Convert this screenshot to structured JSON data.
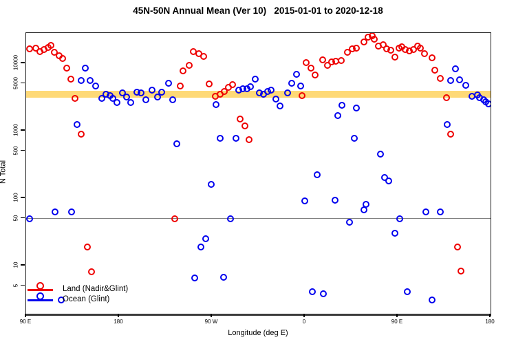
{
  "title": "45N-50N Annual Mean (Ver 10)   2015-01-01 to 2020-12-18",
  "chart_data": {
    "type": "scatter",
    "title": "45N-50N Annual Mean (Ver 10)   2015-01-01 to 2020-12-18",
    "xlabel": "Longitude (deg E)",
    "ylabel": "N Total",
    "grid": false,
    "legend_position": "bottom-left",
    "x_axis": {
      "range_deg": [
        90,
        540
      ],
      "ticks_deg": [
        90,
        180,
        270,
        360,
        450,
        540
      ],
      "tick_labels": [
        "90 E",
        "180",
        "90 W",
        "0",
        "90 E",
        "180"
      ]
    },
    "y_axis": {
      "scale": "log10",
      "log_range": [
        0.286,
        4.449
      ],
      "ticks": [
        10000,
        5000,
        1000,
        500,
        100,
        50,
        10,
        5
      ],
      "tick_labels": [
        "10000",
        "5000",
        "1000",
        "500",
        "100",
        "50",
        "10",
        "5"
      ]
    },
    "reference_line": {
      "value": 50,
      "color": "#7f7f7f"
    },
    "bands": [
      {
        "name": "yellow-band",
        "color": "#fed977",
        "n_range": [
          3100,
          3900
        ],
        "lon_ranges": [
          [
            90,
            540
          ]
        ]
      },
      {
        "name": "blue-band",
        "color": "#a9bedd",
        "n_range": [
          3100,
          3900
        ],
        "lon_ranges": [
          [
            141,
            236
          ],
          [
            268,
            334
          ],
          [
            500,
            540
          ]
        ]
      }
    ],
    "series": [
      {
        "name": "Land (Nadir&Glint)",
        "color": "#ee0000",
        "points": [
          [
            93,
            16400
          ],
          [
            99,
            16800
          ],
          [
            103,
            14900
          ],
          [
            107,
            16000
          ],
          [
            111,
            17200
          ],
          [
            114,
            18400
          ],
          [
            117,
            14600
          ],
          [
            122,
            13000
          ],
          [
            125,
            11800
          ],
          [
            129,
            8500
          ],
          [
            133,
            5800
          ],
          [
            137,
            3000
          ],
          [
            143,
            890
          ],
          [
            149,
            19
          ],
          [
            153,
            8.1
          ],
          [
            234,
            50
          ],
          [
            239,
            4600
          ],
          [
            242,
            7700
          ],
          [
            248,
            9300
          ],
          [
            252,
            14900
          ],
          [
            257,
            13900
          ],
          [
            262,
            12600
          ],
          [
            267,
            4900
          ],
          [
            273,
            3240
          ],
          [
            278,
            3480
          ],
          [
            282,
            3820
          ],
          [
            286,
            4400
          ],
          [
            290,
            4830
          ],
          [
            297,
            1490
          ],
          [
            302,
            1180
          ],
          [
            306,
            740
          ],
          [
            357,
            3300
          ],
          [
            361,
            10200
          ],
          [
            366,
            8500
          ],
          [
            370,
            6700
          ],
          [
            377,
            11200
          ],
          [
            382,
            9300
          ],
          [
            386,
            10500
          ],
          [
            390,
            10700
          ],
          [
            395,
            11000
          ],
          [
            401,
            14600
          ],
          [
            406,
            16400
          ],
          [
            410,
            16800
          ],
          [
            417,
            20700
          ],
          [
            421,
            24400
          ],
          [
            425,
            25600
          ],
          [
            427,
            22700
          ],
          [
            431,
            18000
          ],
          [
            436,
            18900
          ],
          [
            439,
            16400
          ],
          [
            443,
            15600
          ],
          [
            447,
            12400
          ],
          [
            451,
            16800
          ],
          [
            454,
            17600
          ],
          [
            457,
            16000
          ],
          [
            461,
            15300
          ],
          [
            465,
            16000
          ],
          [
            469,
            18000
          ],
          [
            472,
            16800
          ],
          [
            476,
            13900
          ],
          [
            483,
            12100
          ],
          [
            486,
            7900
          ],
          [
            491,
            6000
          ],
          [
            497,
            3090
          ],
          [
            501,
            890
          ],
          [
            508,
            19
          ],
          [
            511,
            8.3
          ]
        ]
      },
      {
        "name": "Ocean (Glint)",
        "color": "#0000ee",
        "points": [
          [
            93,
            50
          ],
          [
            118,
            62
          ],
          [
            124,
            3.1
          ],
          [
            134,
            63
          ],
          [
            139,
            1240
          ],
          [
            143,
            5550
          ],
          [
            147,
            8500
          ],
          [
            152,
            5550
          ],
          [
            157,
            4600
          ],
          [
            163,
            3020
          ],
          [
            167,
            3480
          ],
          [
            171,
            3310
          ],
          [
            174,
            3020
          ],
          [
            178,
            2620
          ],
          [
            183,
            3640
          ],
          [
            187,
            3160
          ],
          [
            191,
            2620
          ],
          [
            197,
            3730
          ],
          [
            201,
            3640
          ],
          [
            206,
            2880
          ],
          [
            212,
            4000
          ],
          [
            217,
            3160
          ],
          [
            221,
            3730
          ],
          [
            228,
            5060
          ],
          [
            232,
            2880
          ],
          [
            236,
            640
          ],
          [
            253,
            6.5
          ],
          [
            259,
            19
          ],
          [
            264,
            25
          ],
          [
            269,
            160
          ],
          [
            274,
            2440
          ],
          [
            278,
            770
          ],
          [
            281,
            6.7
          ],
          [
            288,
            50
          ],
          [
            293,
            770
          ],
          [
            296,
            4000
          ],
          [
            300,
            4190
          ],
          [
            304,
            4190
          ],
          [
            307,
            4500
          ],
          [
            312,
            5820
          ],
          [
            316,
            3640
          ],
          [
            320,
            3480
          ],
          [
            324,
            3820
          ],
          [
            327,
            4000
          ],
          [
            332,
            2950
          ],
          [
            336,
            2330
          ],
          [
            343,
            3640
          ],
          [
            347,
            5060
          ],
          [
            352,
            6870
          ],
          [
            356,
            4600
          ],
          [
            360,
            91
          ],
          [
            367,
            4.1
          ],
          [
            372,
            222
          ],
          [
            378,
            3.8
          ],
          [
            389,
            93
          ],
          [
            392,
            1680
          ],
          [
            396,
            2390
          ],
          [
            403,
            44
          ],
          [
            408,
            770
          ],
          [
            410,
            2170
          ],
          [
            417,
            67
          ],
          [
            419,
            81
          ],
          [
            433,
            450
          ],
          [
            437,
            202
          ],
          [
            441,
            180
          ],
          [
            447,
            30
          ],
          [
            452,
            50
          ],
          [
            459,
            4.1
          ],
          [
            477,
            63
          ],
          [
            483,
            3.1
          ],
          [
            491,
            63
          ],
          [
            498,
            1240
          ],
          [
            501,
            5500
          ],
          [
            506,
            8300
          ],
          [
            510,
            5700
          ],
          [
            516,
            4700
          ],
          [
            522,
            3240
          ],
          [
            527,
            3390
          ],
          [
            529,
            3090
          ],
          [
            533,
            2880
          ],
          [
            535,
            2690
          ],
          [
            538,
            2500
          ]
        ]
      }
    ],
    "legend": {
      "entries": [
        {
          "label": "Land (Nadir&Glint)",
          "color": "#ee0000"
        },
        {
          "label": "Ocean (Glint)",
          "color": "#0000ee"
        }
      ]
    }
  }
}
